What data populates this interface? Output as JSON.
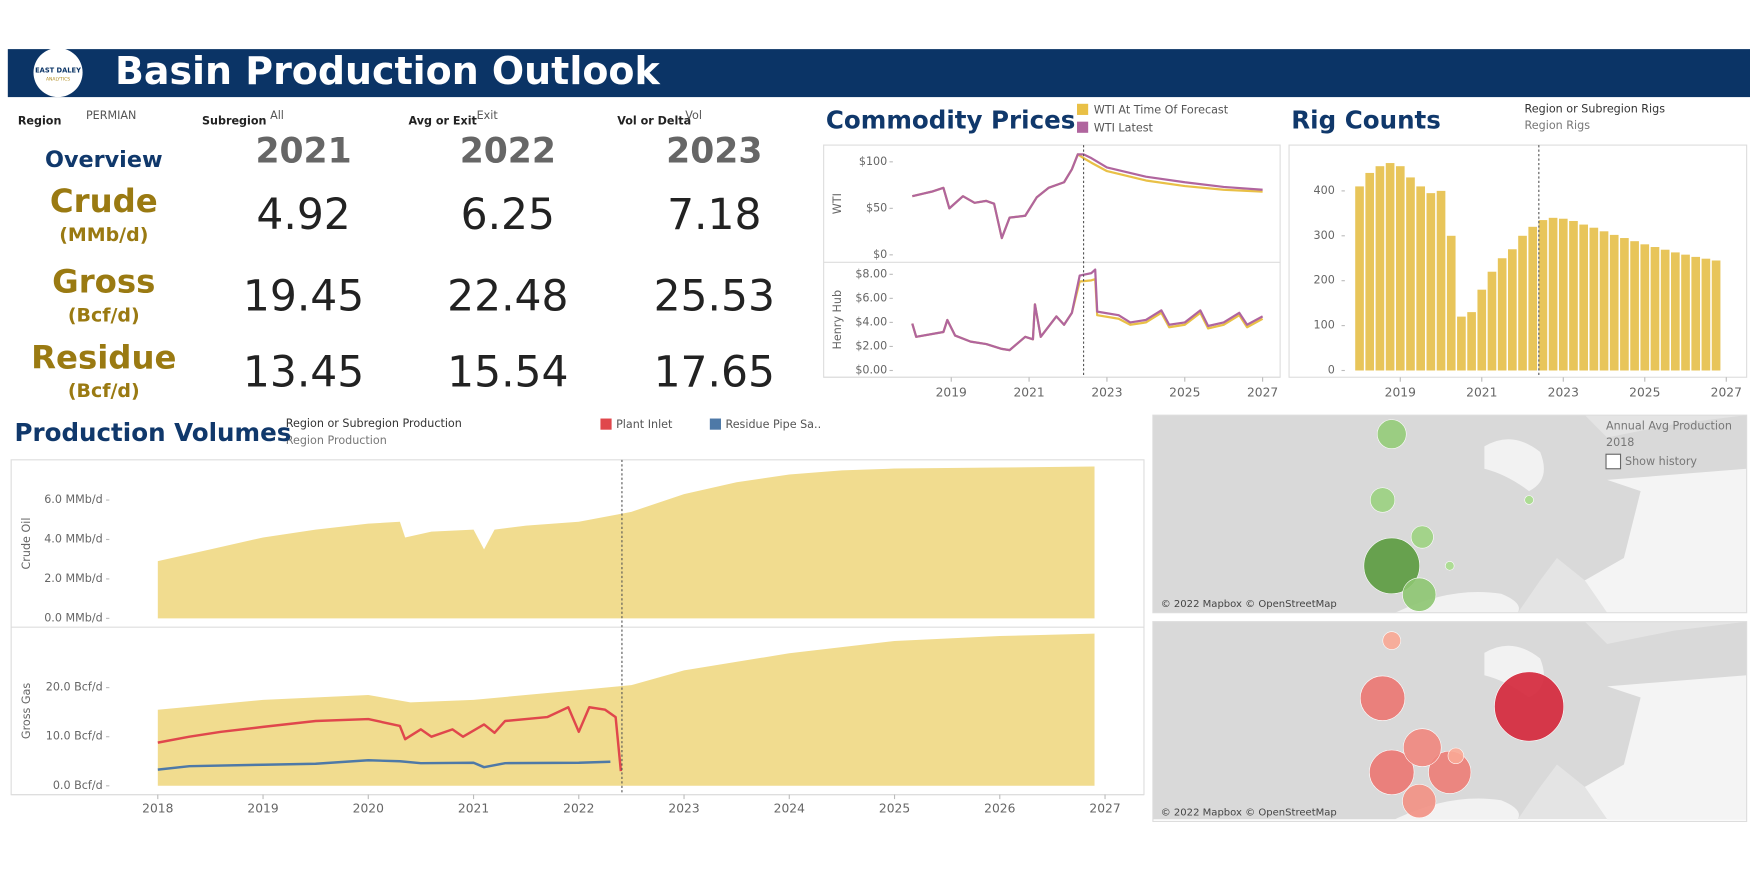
{
  "header": {
    "title": "Basin Production Outlook",
    "logo_text": "EAST DALEY",
    "logo_subtext": "ANALYTICS"
  },
  "filters": [
    {
      "label": "Region",
      "value": "PERMIAN"
    },
    {
      "label": "Subregion",
      "value": "All"
    },
    {
      "label": "Avg or Exit",
      "value": "Exit"
    },
    {
      "label": "Vol or Delta",
      "value": "Vol"
    }
  ],
  "overview": {
    "title": "Overview",
    "years": [
      2021,
      2022,
      2023
    ],
    "rows": [
      {
        "label": "Crude",
        "unit": "(MMb/d)",
        "values": [
          4.92,
          6.25,
          7.18
        ]
      },
      {
        "label": "Gross",
        "unit": "(Bcf/d)",
        "values": [
          19.45,
          22.48,
          25.53
        ]
      },
      {
        "label": "Residue",
        "unit": "(Bcf/d)",
        "values": [
          13.45,
          15.54,
          17.65
        ]
      }
    ]
  },
  "chart_data": [
    {
      "type": "line",
      "title": "Commodity Prices",
      "legend": [
        {
          "name": "WTI At Time Of Forecast",
          "color": "#e9c046"
        },
        {
          "name": "WTI Latest",
          "color": "#b0659e"
        }
      ],
      "xlim": [
        2017.5,
        2027.45
      ],
      "xticks": [
        2019,
        2021,
        2023,
        2025,
        2027
      ],
      "reference_x": 2022.4,
      "panes": [
        {
          "label": "WTI",
          "ylim": [
            -8,
            118
          ],
          "yticks": [
            {
              "value": 0,
              "label": "$0"
            },
            {
              "value": 50,
              "label": "$50"
            },
            {
              "value": 100,
              "label": "$100"
            }
          ],
          "series": [
            {
              "x": [
                2018.0,
                2018.3,
                2018.5,
                2018.8,
                2018.95,
                2019.3,
                2019.6,
                2019.9,
                2020.1,
                2020.3,
                2020.5,
                2020.9,
                2021.2,
                2021.5,
                2021.9,
                2022.1,
                2022.25,
                2022.4,
                2022.6,
                2023,
                2024,
                2025,
                2026,
                2027
              ],
              "values": [
                63,
                66,
                68,
                72,
                50,
                63,
                56,
                58,
                55,
                18,
                40,
                42,
                62,
                72,
                78,
                92,
                108,
                104,
                99,
                90,
                80,
                74,
                70,
                68
              ]
            },
            {
              "x": [
                2018.0,
                2018.3,
                2018.5,
                2018.8,
                2018.95,
                2019.3,
                2019.6,
                2019.9,
                2020.1,
                2020.3,
                2020.5,
                2020.9,
                2021.2,
                2021.5,
                2021.9,
                2022.1,
                2022.25,
                2022.4,
                2022.6,
                2023,
                2024,
                2025,
                2026,
                2027
              ],
              "values": [
                63,
                66,
                68,
                72,
                50,
                63,
                56,
                58,
                55,
                18,
                40,
                42,
                62,
                72,
                78,
                92,
                108,
                108,
                104,
                94,
                84,
                78,
                73,
                70
              ]
            }
          ]
        },
        {
          "label": "Henry Hub",
          "ylim": [
            -0.56,
            9.0
          ],
          "yticks": [
            {
              "value": 0,
              "label": "$0.00"
            },
            {
              "value": 2,
              "label": "$2.00"
            },
            {
              "value": 4,
              "label": "$4.00"
            },
            {
              "value": 6,
              "label": "$6.00"
            },
            {
              "value": 8,
              "label": "$8.00"
            }
          ],
          "series": [
            {
              "x": [
                2018.0,
                2018.1,
                2018.8,
                2018.9,
                2019.1,
                2019.5,
                2019.9,
                2020.3,
                2020.5,
                2020.9,
                2021.1,
                2021.15,
                2021.3,
                2021.7,
                2021.9,
                2022.1,
                2022.3,
                2022.6,
                2022.7,
                2022.75,
                2023.3,
                2023.6,
                2024,
                2024.4,
                2024.6,
                2025,
                2025.4,
                2025.6,
                2026,
                2026.4,
                2026.6,
                2027
              ],
              "values": [
                3.9,
                2.8,
                3.2,
                4.2,
                2.9,
                2.4,
                2.2,
                1.8,
                1.7,
                2.8,
                2.6,
                5.5,
                2.8,
                4.5,
                3.8,
                4.8,
                7.4,
                7.5,
                7.6,
                4.6,
                4.3,
                3.8,
                4.0,
                4.8,
                3.6,
                3.8,
                4.8,
                3.5,
                3.8,
                4.6,
                3.6,
                4.3
              ]
            },
            {
              "x": [
                2018.0,
                2018.1,
                2018.8,
                2018.9,
                2019.1,
                2019.5,
                2019.9,
                2020.3,
                2020.5,
                2020.9,
                2021.1,
                2021.15,
                2021.3,
                2021.7,
                2021.9,
                2022.1,
                2022.3,
                2022.6,
                2022.7,
                2022.75,
                2023.3,
                2023.6,
                2024,
                2024.4,
                2024.6,
                2025,
                2025.4,
                2025.6,
                2026,
                2026.4,
                2026.6,
                2027
              ],
              "values": [
                3.9,
                2.8,
                3.2,
                4.2,
                2.9,
                2.4,
                2.2,
                1.8,
                1.7,
                2.8,
                2.6,
                5.5,
                2.8,
                4.5,
                3.8,
                4.8,
                7.9,
                8.1,
                8.4,
                4.9,
                4.6,
                4.0,
                4.2,
                5.0,
                3.8,
                4.0,
                5.0,
                3.7,
                4.0,
                4.8,
                3.8,
                4.5
              ]
            }
          ]
        }
      ]
    },
    {
      "type": "bar",
      "title": "Rig Counts",
      "legend_title": "Region or Subregion Rigs",
      "legend_item": "Region Rigs",
      "color": "#e8c55a",
      "xlim": [
        2017.64,
        2027.5
      ],
      "xticks": [
        2019,
        2021,
        2023,
        2025,
        2027
      ],
      "ylim": [
        -15,
        502
      ],
      "yticks": [
        0,
        100,
        200,
        300,
        400
      ],
      "reference_x": 2022.4,
      "x": [
        2018.0,
        2018.25,
        2018.5,
        2018.75,
        2019.0,
        2019.25,
        2019.5,
        2019.75,
        2020.0,
        2020.25,
        2020.5,
        2020.75,
        2021.0,
        2021.25,
        2021.5,
        2021.75,
        2022.0,
        2022.25,
        2022.5,
        2022.75,
        2023.0,
        2023.25,
        2023.5,
        2023.75,
        2024.0,
        2024.25,
        2024.5,
        2024.75,
        2025.0,
        2025.25,
        2025.5,
        2025.75,
        2026.0,
        2026.25,
        2026.5,
        2026.75
      ],
      "values": [
        410,
        440,
        455,
        462,
        455,
        430,
        410,
        395,
        400,
        300,
        120,
        130,
        180,
        220,
        250,
        270,
        300,
        320,
        335,
        340,
        338,
        333,
        325,
        318,
        310,
        302,
        295,
        288,
        281,
        275,
        269,
        263,
        258,
        253,
        249,
        245
      ]
    },
    {
      "type": "area",
      "title": "Production Volumes",
      "legend_title": "Region or Subregion Production",
      "area_name": "Region Production",
      "area_color": "#f1dc8f",
      "series_legend": [
        {
          "name": "Plant Inlet",
          "color": "#e0474c"
        },
        {
          "name": "Residue Pipe Sa..",
          "color": "#4e79a7"
        }
      ],
      "xlim": [
        2017.54,
        2027.37
      ],
      "xticks": [
        2018,
        2019,
        2020,
        2021,
        2022,
        2023,
        2024,
        2025,
        2026,
        2027
      ],
      "reference_x": 2022.41,
      "panes": [
        {
          "label": "Crude Oil",
          "ylim": [
            -0.45,
            8.04
          ],
          "yticks": [
            {
              "value": 0,
              "label": "0.0 MMb/d"
            },
            {
              "value": 2,
              "label": "2.0 MMb/d"
            },
            {
              "value": 4,
              "label": "4.0 MMb/d"
            },
            {
              "value": 6,
              "label": "6.0 MMb/d"
            }
          ],
          "area": {
            "x": [
              2018,
              2018.5,
              2019,
              2019.5,
              2020,
              2020.3,
              2020.35,
              2020.6,
              2021,
              2021.1,
              2021.2,
              2021.5,
              2022,
              2022.5,
              2023,
              2023.5,
              2024,
              2024.5,
              2025,
              2026,
              2026.9
            ],
            "values": [
              2.9,
              3.5,
              4.1,
              4.5,
              4.8,
              4.9,
              4.1,
              4.4,
              4.5,
              3.5,
              4.5,
              4.7,
              4.9,
              5.4,
              6.3,
              6.9,
              7.3,
              7.5,
              7.6,
              7.65,
              7.7
            ]
          },
          "lines": []
        },
        {
          "label": "Gross Gas",
          "ylim": [
            -1.8,
            32.3
          ],
          "yticks": [
            {
              "value": 0,
              "label": "0.0 Bcf/d"
            },
            {
              "value": 10,
              "label": "10.0 Bcf/d"
            },
            {
              "value": 20,
              "label": "20.0 Bcf/d"
            }
          ],
          "area": {
            "x": [
              2018,
              2019,
              2020,
              2020.4,
              2021,
              2022,
              2022.5,
              2023,
              2024,
              2025,
              2026,
              2026.9
            ],
            "values": [
              15.5,
              17.5,
              18.5,
              17,
              17.5,
              19.5,
              20.5,
              23.5,
              27,
              29.5,
              30.5,
              31
            ]
          },
          "lines": [
            {
              "x": [
                2018,
                2018.3,
                2018.6,
                2019,
                2019.5,
                2020,
                2020.3,
                2020.35,
                2020.5,
                2020.6,
                2020.8,
                2020.9,
                2021.1,
                2021.2,
                2021.3,
                2021.7,
                2021.9,
                2022,
                2022.1,
                2022.25,
                2022.35,
                2022.4
              ],
              "values": [
                8.8,
                10,
                11,
                12,
                13.2,
                13.6,
                12.2,
                9.5,
                11.5,
                10,
                11.5,
                10,
                12.5,
                10.8,
                13.2,
                14,
                16,
                11,
                16,
                15.5,
                14,
                3
              ]
            },
            {
              "x": [
                2018,
                2018.3,
                2019,
                2019.5,
                2020,
                2020.3,
                2020.5,
                2021,
                2021.1,
                2021.3,
                2022,
                2022.3
              ],
              "values": [
                3.3,
                4.0,
                4.3,
                4.5,
                5.2,
                5.0,
                4.6,
                4.7,
                3.8,
                4.6,
                4.7,
                4.9
              ]
            }
          ]
        }
      ]
    },
    {
      "type": "bubble_map",
      "legend_title": "Annual Avg Production",
      "legend_year": 2018,
      "checkbox_label": "Show history",
      "attribution": "© 2022 Mapbox © OpenStreetMap",
      "maps": [
        {
          "lon": [
            -103,
            -98.5,
            -103,
            -104.5,
            -98,
            -93.5,
            -80.5
          ],
          "lat": [
            32,
            28.5,
            48,
            40,
            35.5,
            32,
            40
          ],
          "values": [
            4.8,
            1.73,
            1.3,
            0.93,
            0.77,
            0.12,
            0.12
          ],
          "color_range": [
            "#a9dd8e",
            "#5a9a3e"
          ]
        },
        {
          "lon": [
            -80.5,
            -104.5,
            -103,
            -93.5,
            -98,
            -98.5,
            -103,
            -92.5
          ],
          "lat": [
            40,
            41,
            32,
            32,
            35,
            28.5,
            48,
            34
          ],
          "values": [
            33,
            13.7,
            13.7,
            12.4,
            9.9,
            7.7,
            2.2,
            1.7
          ],
          "color_range": [
            "#fbb09a",
            "#d42538"
          ]
        }
      ]
    }
  ]
}
